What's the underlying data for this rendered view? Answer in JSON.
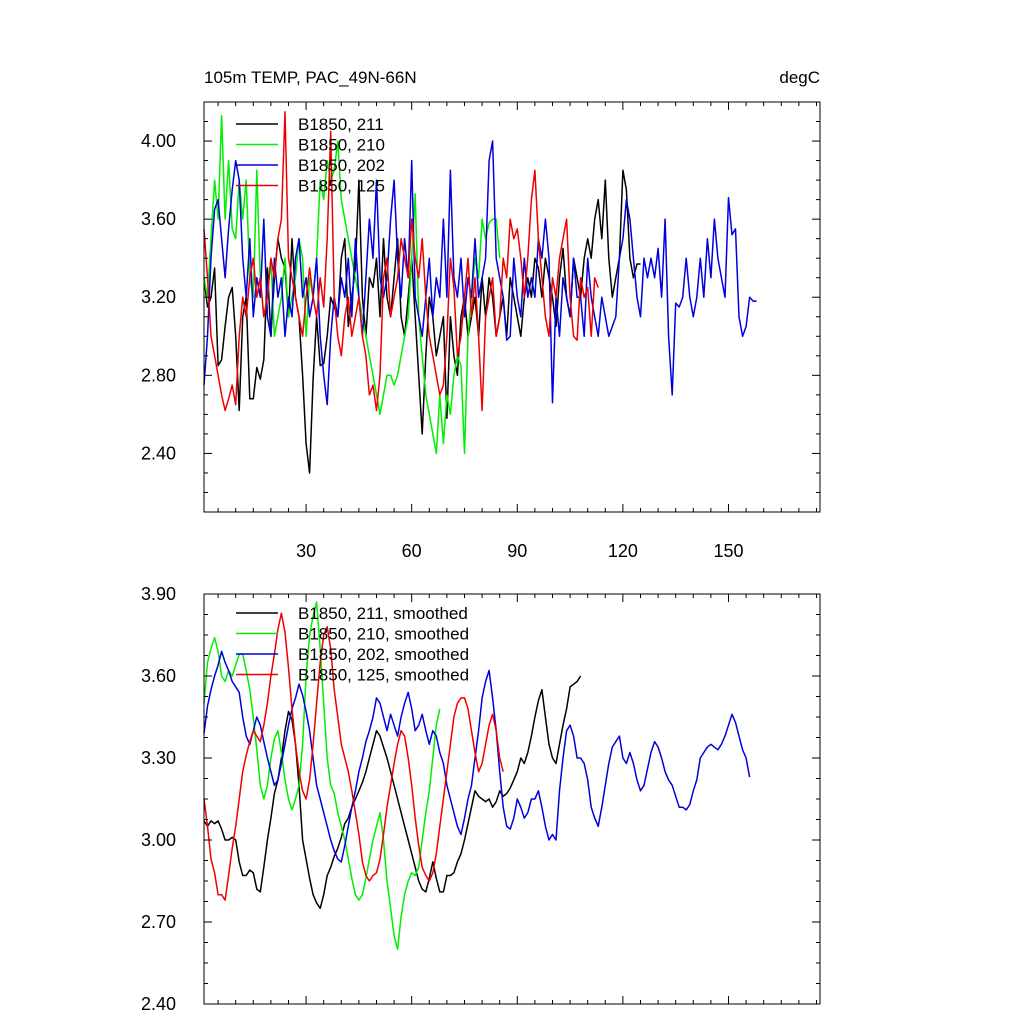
{
  "chart_data": [
    {
      "type": "line",
      "title": "105m TEMP, PAC_49N-66N",
      "units": "degC",
      "xlim": [
        1,
        176
      ],
      "ylim": [
        2.1,
        4.2
      ],
      "x_ticks": [
        30,
        60,
        90,
        120,
        150
      ],
      "x_tick_labels": [
        "30",
        "60",
        "90",
        "120",
        "150"
      ],
      "y_ticks": [
        2.4,
        2.8,
        3.2,
        3.6,
        4.0
      ],
      "y_tick_labels": [
        "2.40",
        "2.80",
        "3.20",
        "3.60",
        "4.00"
      ],
      "legend": "top-left",
      "grid": false,
      "series": [
        {
          "name": "B1850, 211",
          "color": "#000000",
          "values": [
            3.3,
            3.15,
            3.2,
            3.35,
            2.85,
            2.88,
            3.05,
            3.2,
            3.25,
            3.0,
            2.62,
            3.1,
            3.2,
            2.68,
            2.68,
            2.84,
            2.78,
            2.88,
            3.35,
            3.0,
            3.3,
            3.5,
            3.4,
            3.35,
            3.1,
            3.5,
            3.2,
            3.1,
            2.8,
            2.45,
            2.3,
            2.78,
            3.1,
            2.85,
            2.86,
            3.0,
            3.2,
            3.15,
            3.1,
            3.4,
            3.5,
            3.05,
            3.2,
            3.35,
            3.8,
            3.2,
            3.0,
            3.3,
            3.25,
            3.4,
            3.1,
            3.5,
            3.2,
            3.1,
            3.3,
            3.5,
            3.1,
            3.0,
            3.2,
            3.4,
            3.1,
            2.8,
            2.5,
            2.9,
            3.2,
            3.1,
            2.9,
            3.0,
            3.1,
            2.58,
            3.1,
            2.9,
            2.8,
            3.1,
            3.2,
            3.0,
            3.1,
            3.2,
            3.0,
            3.3,
            3.1,
            3.3,
            3.2,
            3.0,
            3.1,
            3.2,
            3.0,
            3.3,
            3.2,
            3.1,
            3.0,
            3.2,
            3.3,
            3.2,
            3.4,
            3.35,
            3.2,
            3.4,
            3.3,
            3.2,
            3.05,
            3.3,
            3.45,
            3.2,
            3.1,
            3.4,
            3.3,
            3.2,
            3.4,
            3.5,
            3.4,
            3.6,
            3.7,
            3.5,
            3.8,
            3.4,
            3.2,
            3.3,
            3.4,
            3.85,
            3.75,
            3.4,
            3.3,
            3.37,
            3.37
          ]
        },
        {
          "name": "B1850, 210",
          "color": "#00ee00",
          "values": [
            3.3,
            3.2,
            3.5,
            3.8,
            3.6,
            4.13,
            3.6,
            3.9,
            3.55,
            3.5,
            3.8,
            3.6,
            3.8,
            3.3,
            3.2,
            3.85,
            3.3,
            3.1,
            3.2,
            3.4,
            3.0,
            3.1,
            3.2,
            3.4,
            3.1,
            3.2,
            3.3,
            3.5,
            3.4,
            3.0,
            3.3,
            3.2,
            3.4,
            3.8,
            3.7,
            3.9,
            3.8,
            3.85,
            4.0,
            3.7,
            3.6,
            3.5,
            3.4,
            3.3,
            3.2,
            3.1,
            3.0,
            2.9,
            2.8,
            2.7,
            2.6,
            2.7,
            2.8,
            2.8,
            2.75,
            2.8,
            2.9,
            3.0,
            3.1,
            3.4,
            3.73,
            3.1,
            2.9,
            2.7,
            2.6,
            2.5,
            2.4,
            2.7,
            2.45,
            2.7,
            2.6,
            2.8,
            2.9,
            2.85,
            2.4,
            3.0,
            3.2,
            3.4,
            3.3,
            3.6,
            3.5,
            3.58,
            3.6,
            3.6,
            3.4
          ]
        },
        {
          "name": "B1850, 202",
          "color": "#0000dd",
          "values": [
            2.75,
            3.0,
            3.4,
            3.65,
            3.7,
            3.5,
            3.3,
            3.55,
            3.75,
            3.9,
            3.8,
            3.4,
            3.2,
            3.5,
            3.1,
            3.3,
            3.2,
            3.6,
            3.1,
            3.0,
            3.4,
            3.2,
            3.3,
            3.0,
            3.2,
            3.1,
            3.4,
            3.5,
            3.2,
            3.3,
            3.1,
            3.2,
            3.4,
            3.0,
            2.8,
            2.65,
            3.0,
            3.2,
            3.1,
            3.3,
            3.2,
            3.4,
            3.1,
            3.5,
            3.2,
            3.0,
            3.3,
            3.6,
            3.4,
            3.8,
            3.3,
            3.2,
            3.3,
            3.6,
            3.8,
            3.4,
            3.2,
            3.5,
            3.3,
            3.9,
            3.2,
            3.1,
            3.0,
            3.2,
            3.4,
            3.1,
            3.3,
            3.2,
            3.6,
            3.2,
            3.85,
            3.3,
            3.2,
            3.4,
            3.1,
            3.3,
            3.2,
            3.5,
            3.2,
            3.3,
            3.4,
            3.9,
            4.0,
            3.4,
            3.3,
            3.2,
            2.98,
            3.0,
            3.4,
            3.2,
            3.1,
            3.4,
            3.2,
            3.3,
            3.2,
            3.5,
            3.4,
            3.6,
            3.4,
            2.66,
            3.2,
            3.0,
            3.3,
            3.2,
            3.1,
            3.4,
            3.2,
            3.2,
            3.0,
            3.4,
            3.2,
            3.1,
            3.0,
            3.2,
            3.1,
            3.0,
            3.05,
            3.1,
            3.4,
            3.5,
            3.7,
            3.6,
            3.4,
            3.2,
            3.1,
            3.4,
            3.3,
            3.4,
            3.3,
            3.45,
            3.2,
            3.6,
            3.0,
            2.7,
            3.17,
            3.15,
            3.2,
            3.4,
            3.2,
            3.1,
            3.2,
            3.4,
            3.2,
            3.5,
            3.3,
            3.6,
            3.4,
            3.3,
            3.2,
            3.71,
            3.52,
            3.55,
            3.1,
            3.0,
            3.05,
            3.2,
            3.18,
            3.18
          ]
        },
        {
          "name": "B1850, 125",
          "color": "#ee0000",
          "values": [
            3.55,
            3.3,
            3.0,
            2.9,
            2.8,
            2.7,
            2.62,
            2.68,
            2.75,
            2.65,
            3.0,
            3.2,
            3.1,
            3.3,
            3.4,
            3.2,
            3.3,
            3.1,
            3.2,
            3.4,
            3.3,
            3.5,
            3.6,
            4.15,
            3.4,
            3.3,
            3.2,
            3.1,
            3.0,
            3.2,
            3.35,
            3.2,
            3.1,
            3.3,
            3.15,
            3.5,
            4.05,
            3.2,
            3.0,
            2.9,
            3.1,
            3.2,
            3.0,
            3.1,
            3.2,
            3.0,
            2.9,
            2.7,
            2.75,
            2.62,
            2.8,
            3.3,
            3.4,
            3.1,
            3.2,
            3.3,
            3.5,
            3.4,
            3.3,
            3.6,
            3.4,
            3.3,
            3.5,
            3.2,
            3.0,
            2.9,
            2.8,
            2.7,
            2.75,
            3.0,
            3.4,
            3.25,
            2.9,
            3.0,
            3.2,
            3.4,
            3.1,
            3.3,
            3.0,
            2.62,
            3.1,
            3.2,
            3.3,
            3.0,
            3.1,
            3.4,
            3.3,
            3.6,
            3.5,
            3.55,
            3.4,
            3.2,
            3.4,
            3.7,
            3.85,
            3.5,
            3.3,
            3.1,
            3.0,
            3.3,
            3.2,
            3.4,
            3.5,
            3.6,
            3.2,
            3.0,
            2.98,
            3.3,
            3.2,
            3.25,
            3.0,
            3.3,
            3.25
          ]
        }
      ]
    },
    {
      "type": "line",
      "xlim": [
        1,
        176
      ],
      "ylim": [
        2.4,
        3.9
      ],
      "x_ticks": [
        30,
        60,
        90,
        120,
        150
      ],
      "y_ticks": [
        2.4,
        2.7,
        3.0,
        3.3,
        3.6,
        3.9
      ],
      "y_tick_labels": [
        "2.40",
        "2.70",
        "3.00",
        "3.30",
        "3.60",
        "3.90"
      ],
      "legend": "top-left",
      "grid": false,
      "series": [
        {
          "name": "B1850, 211, smoothed",
          "color": "#000000",
          "values": [
            3.07,
            3.05,
            3.07,
            3.06,
            3.07,
            3.04,
            3.0,
            3.0,
            3.01,
            3.0,
            2.92,
            2.87,
            2.87,
            2.89,
            2.88,
            2.82,
            2.81,
            2.9,
            3.0,
            3.08,
            3.17,
            3.22,
            3.3,
            3.4,
            3.47,
            3.44,
            3.35,
            3.2,
            3.0,
            2.93,
            2.86,
            2.8,
            2.77,
            2.75,
            2.8,
            2.87,
            2.9,
            2.94,
            2.97,
            3.01,
            3.06,
            3.08,
            3.12,
            3.15,
            3.18,
            3.21,
            3.25,
            3.3,
            3.35,
            3.4,
            3.38,
            3.34,
            3.3,
            3.25,
            3.2,
            3.15,
            3.1,
            3.05,
            3.0,
            2.95,
            2.9,
            2.85,
            2.82,
            2.81,
            2.86,
            2.92,
            2.86,
            2.81,
            2.81,
            2.87,
            2.87,
            2.88,
            2.92,
            2.95,
            3.0,
            3.06,
            3.12,
            3.18,
            3.16,
            3.15,
            3.14,
            3.15,
            3.12,
            3.14,
            3.18,
            3.16,
            3.17,
            3.19,
            3.22,
            3.25,
            3.3,
            3.28,
            3.32,
            3.38,
            3.45,
            3.51,
            3.55,
            3.45,
            3.35,
            3.3,
            3.28,
            3.35,
            3.42,
            3.48,
            3.56,
            3.57,
            3.58,
            3.6
          ]
        },
        {
          "name": "B1850, 210, smoothed",
          "color": "#00ee00",
          "values": [
            3.5,
            3.65,
            3.7,
            3.74,
            3.69,
            3.6,
            3.58,
            3.62,
            3.6,
            3.64,
            3.68,
            3.68,
            3.62,
            3.55,
            3.45,
            3.33,
            3.2,
            3.15,
            3.2,
            3.3,
            3.37,
            3.4,
            3.32,
            3.22,
            3.15,
            3.11,
            3.15,
            3.2,
            3.35,
            3.6,
            3.75,
            3.82,
            3.87,
            3.7,
            3.5,
            3.3,
            3.2,
            3.17,
            3.1,
            3.05,
            3.0,
            2.93,
            2.86,
            2.8,
            2.78,
            2.8,
            2.86,
            2.93,
            3.0,
            3.05,
            3.1,
            3.0,
            2.85,
            2.75,
            2.65,
            2.6,
            2.72,
            2.8,
            2.85,
            2.88,
            2.87,
            2.9,
            3.0,
            3.1,
            3.18,
            3.3,
            3.42,
            3.48
          ]
        },
        {
          "name": "B1850, 202, smoothed",
          "color": "#0000dd",
          "values": [
            3.39,
            3.49,
            3.55,
            3.6,
            3.64,
            3.69,
            3.65,
            3.62,
            3.58,
            3.56,
            3.54,
            3.45,
            3.38,
            3.35,
            3.4,
            3.45,
            3.42,
            3.36,
            3.3,
            3.25,
            3.2,
            3.22,
            3.28,
            3.35,
            3.42,
            3.48,
            3.52,
            3.57,
            3.53,
            3.47,
            3.4,
            3.3,
            3.2,
            3.15,
            3.1,
            3.05,
            3.0,
            2.96,
            2.93,
            2.92,
            2.98,
            3.05,
            3.12,
            3.18,
            3.25,
            3.3,
            3.36,
            3.4,
            3.45,
            3.52,
            3.5,
            3.45,
            3.4,
            3.46,
            3.42,
            3.38,
            3.45,
            3.5,
            3.54,
            3.48,
            3.4,
            3.42,
            3.46,
            3.4,
            3.35,
            3.4,
            3.38,
            3.32,
            3.28,
            3.2,
            3.15,
            3.1,
            3.05,
            3.02,
            3.08,
            3.15,
            3.2,
            3.3,
            3.4,
            3.52,
            3.58,
            3.62,
            3.52,
            3.4,
            3.25,
            3.12,
            3.05,
            3.04,
            3.08,
            3.15,
            3.12,
            3.08,
            3.1,
            3.15,
            3.15,
            3.18,
            3.12,
            3.05,
            3.0,
            3.02,
            3.0,
            3.18,
            3.3,
            3.4,
            3.42,
            3.38,
            3.3,
            3.3,
            3.28,
            3.22,
            3.12,
            3.08,
            3.05,
            3.12,
            3.2,
            3.28,
            3.34,
            3.36,
            3.38,
            3.3,
            3.28,
            3.32,
            3.28,
            3.22,
            3.18,
            3.2,
            3.26,
            3.32,
            3.36,
            3.34,
            3.3,
            3.25,
            3.22,
            3.2,
            3.16,
            3.12,
            3.12,
            3.11,
            3.13,
            3.18,
            3.22,
            3.3,
            3.32,
            3.34,
            3.35,
            3.34,
            3.33,
            3.35,
            3.38,
            3.42,
            3.46,
            3.43,
            3.38,
            3.33,
            3.3,
            3.23
          ]
        },
        {
          "name": "B1850, 125, smoothed",
          "color": "#ee0000",
          "values": [
            3.15,
            3.05,
            2.93,
            2.88,
            2.8,
            2.8,
            2.78,
            2.87,
            2.97,
            3.05,
            3.15,
            3.25,
            3.31,
            3.36,
            3.4,
            3.38,
            3.36,
            3.42,
            3.5,
            3.6,
            3.68,
            3.77,
            3.83,
            3.76,
            3.63,
            3.48,
            3.35,
            3.25,
            3.18,
            3.15,
            3.22,
            3.35,
            3.5,
            3.65,
            3.75,
            3.78,
            3.7,
            3.55,
            3.45,
            3.35,
            3.3,
            3.25,
            3.18,
            3.1,
            3.02,
            2.92,
            2.87,
            2.85,
            2.87,
            2.88,
            2.93,
            3.02,
            3.12,
            3.2,
            3.28,
            3.35,
            3.4,
            3.38,
            3.3,
            3.2,
            3.08,
            2.98,
            2.9,
            2.87,
            2.85,
            2.88,
            2.95,
            3.05,
            3.15,
            3.25,
            3.35,
            3.45,
            3.5,
            3.52,
            3.52,
            3.48,
            3.4,
            3.32,
            3.25,
            3.28,
            3.35,
            3.42,
            3.46,
            3.4,
            3.3,
            3.25
          ]
        }
      ]
    }
  ]
}
